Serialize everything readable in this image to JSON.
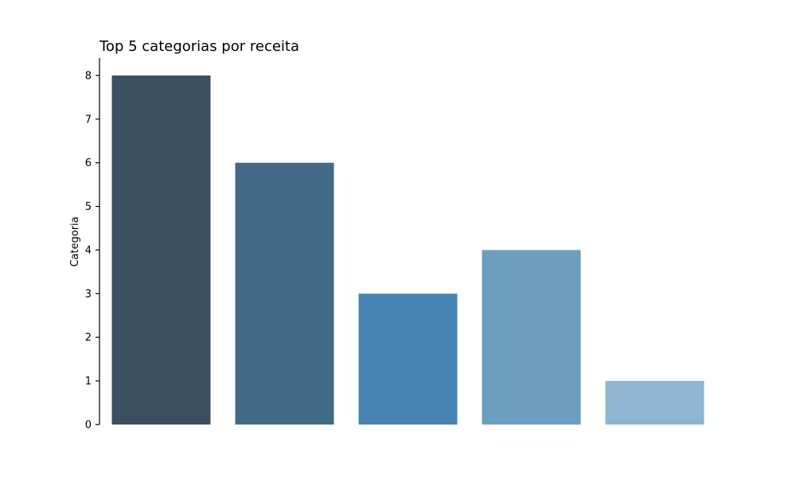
{
  "chart_data": {
    "type": "bar",
    "title": "Top 5 categorias por receita",
    "xlabel": "",
    "ylabel": "Categoria",
    "categories": [
      "",
      "",
      "",
      "",
      ""
    ],
    "values": [
      8,
      6,
      3,
      4,
      1
    ],
    "colors": [
      "#3b4f5e",
      "#426985",
      "#4884b1",
      "#6b9ebf",
      "#8fb5d0"
    ],
    "ylim": [
      0,
      8.4
    ],
    "yticks": [
      0,
      1,
      2,
      3,
      4,
      5,
      6,
      7,
      8
    ],
    "grid": false,
    "legend": "none"
  }
}
